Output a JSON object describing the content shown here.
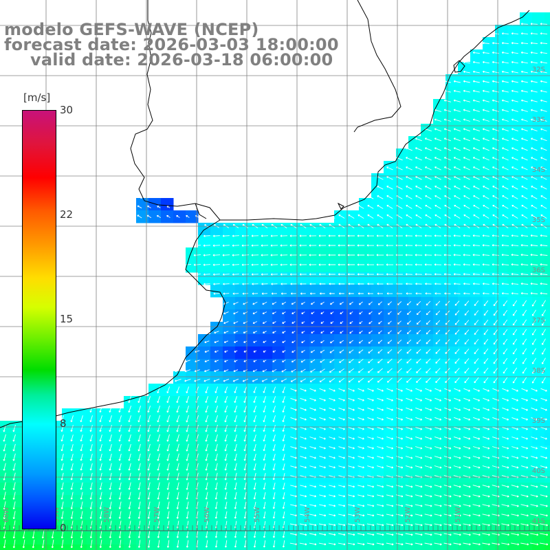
{
  "title": {
    "line1": "modelo GEFS-WAVE (NCEP)",
    "line2": "forecast date: 2026-03-03 18:00:00",
    "line3": "valid date: 2026-03-18 06:00:00"
  },
  "colorbar": {
    "unit": "[m/s]",
    "ticks": [
      "30",
      "22",
      "15",
      "8",
      "0"
    ],
    "min": 0,
    "max": 30,
    "colors": [
      "#0000ee",
      "#0055ff",
      "#0099ff",
      "#00ccff",
      "#00ffff",
      "#00ee99",
      "#00dd00",
      "#66ee00",
      "#d6ff00",
      "#ffdd00",
      "#ff9900",
      "#ff5a00",
      "#ff0000",
      "#e0143c",
      "#c8127a"
    ]
  },
  "map": {
    "lat_labels": [
      "32S",
      "33S",
      "34S",
      "35S",
      "36S",
      "37S",
      "38S",
      "39S",
      "40S",
      "41S"
    ],
    "lon_labels": [
      "60W",
      "59W",
      "58W",
      "57W",
      "56W",
      "55W",
      "54W",
      "53W",
      "52W",
      "51W"
    ],
    "land_color": "#ffffff",
    "coast_color": "#000000",
    "grid_color": "#808080",
    "arrow_color": "#ffffff"
  }
}
